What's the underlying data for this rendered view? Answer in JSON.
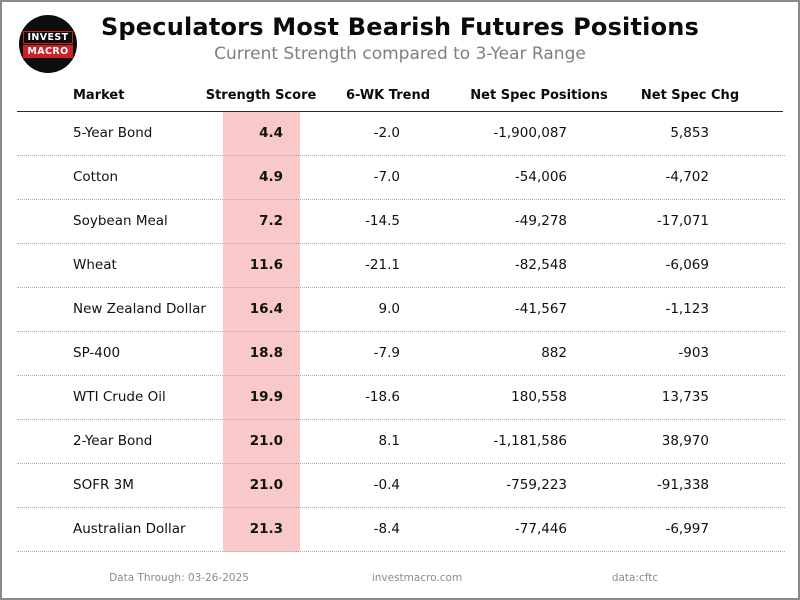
{
  "header": {
    "title": "Speculators Most Bearish Futures Positions",
    "subtitle": "Current Strength compared to 3-Year Range",
    "logo": {
      "line1": "INVEST",
      "line2": "MACRO"
    }
  },
  "table": {
    "columns": [
      "Market",
      "Strength Score",
      "6-WK Trend",
      "Net Spec Positions",
      "Net Spec Chg"
    ],
    "rows": [
      {
        "market": "5-Year Bond",
        "score": "4.4",
        "trend": "-2.0",
        "positions": "-1,900,087",
        "change": "5,853"
      },
      {
        "market": "Cotton",
        "score": "4.9",
        "trend": "-7.0",
        "positions": "-54,006",
        "change": "-4,702"
      },
      {
        "market": "Soybean Meal",
        "score": "7.2",
        "trend": "-14.5",
        "positions": "-49,278",
        "change": "-17,071"
      },
      {
        "market": "Wheat",
        "score": "11.6",
        "trend": "-21.1",
        "positions": "-82,548",
        "change": "-6,069"
      },
      {
        "market": "New Zealand Dollar",
        "score": "16.4",
        "trend": "9.0",
        "positions": "-41,567",
        "change": "-1,123"
      },
      {
        "market": "SP-400",
        "score": "18.8",
        "trend": "-7.9",
        "positions": "882",
        "change": "-903"
      },
      {
        "market": "WTI Crude Oil",
        "score": "19.9",
        "trend": "-18.6",
        "positions": "180,558",
        "change": "13,735"
      },
      {
        "market": "2-Year Bond",
        "score": "21.0",
        "trend": "8.1",
        "positions": "-1,181,586",
        "change": "38,970"
      },
      {
        "market": "SOFR 3M",
        "score": "21.0",
        "trend": "-0.4",
        "positions": "-759,223",
        "change": "-91,338"
      },
      {
        "market": "Australian Dollar",
        "score": "21.3",
        "trend": "-8.4",
        "positions": "-77,446",
        "change": "-6,997"
      }
    ]
  },
  "footer": {
    "data_through": "Data Through: 03-26-2025",
    "site": "investmacro.com",
    "source": "data:cftc"
  },
  "colors": {
    "score_highlight": "#f9c8c8",
    "logo_red": "#cc1f26",
    "subtitle_gray": "#7f7f7f",
    "frame_border": "#8a8a8a"
  },
  "chart_data": {
    "type": "table",
    "title": "Speculators Most Bearish Futures Positions",
    "subtitle": "Current Strength compared to 3-Year Range",
    "columns": [
      "Market",
      "Strength Score",
      "6-WK Trend",
      "Net Spec Positions",
      "Net Spec Chg"
    ],
    "rows": [
      [
        "5-Year Bond",
        4.4,
        -2.0,
        -1900087,
        5853
      ],
      [
        "Cotton",
        4.9,
        -7.0,
        -54006,
        -4702
      ],
      [
        "Soybean Meal",
        7.2,
        -14.5,
        -49278,
        -17071
      ],
      [
        "Wheat",
        11.6,
        -21.1,
        -82548,
        -6069
      ],
      [
        "New Zealand Dollar",
        16.4,
        9.0,
        -41567,
        -1123
      ],
      [
        "SP-400",
        18.8,
        -7.9,
        882,
        -903
      ],
      [
        "WTI Crude Oil",
        19.9,
        -18.6,
        180558,
        13735
      ],
      [
        "2-Year Bond",
        21.0,
        8.1,
        -1181586,
        38970
      ],
      [
        "SOFR 3M",
        21.0,
        -0.4,
        -759223,
        -91338
      ],
      [
        "Australian Dollar",
        21.3,
        -8.4,
        -77446,
        -6997
      ]
    ],
    "notes": [
      "Data Through: 03-26-2025",
      "investmacro.com",
      "data:cftc"
    ],
    "highlight_column": "Strength Score",
    "highlight_color": "#f9c8c8"
  }
}
